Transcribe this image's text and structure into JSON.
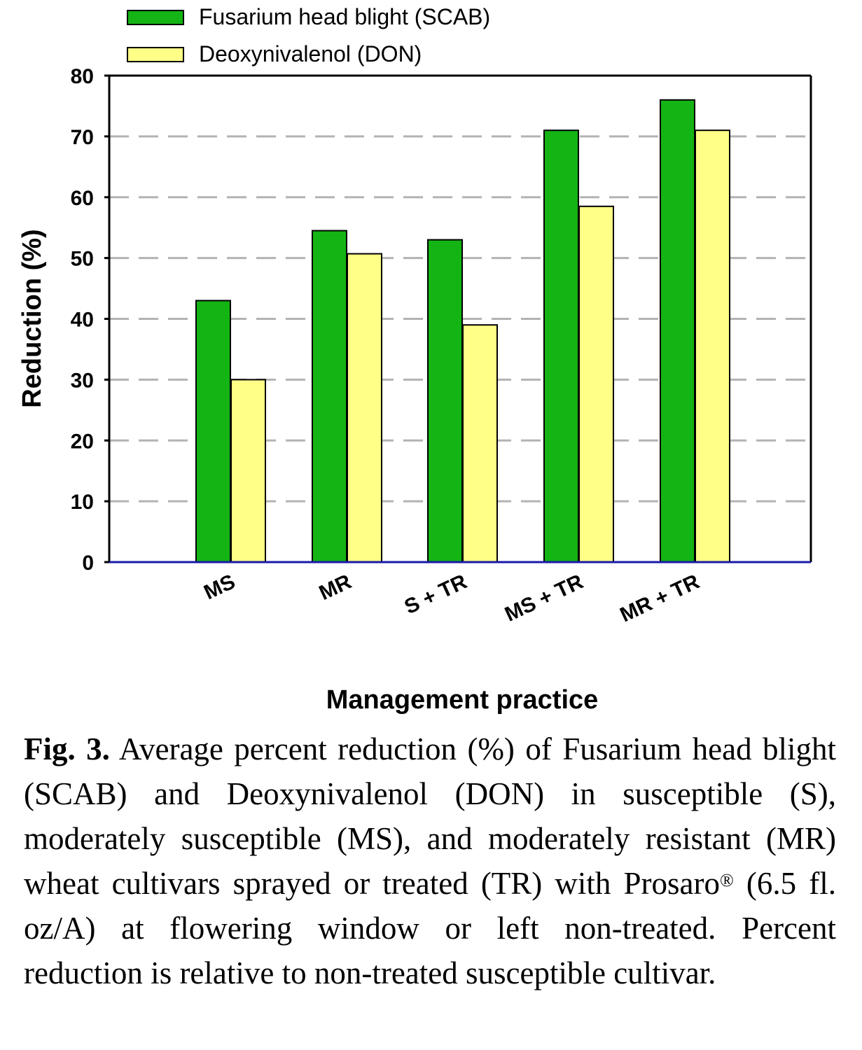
{
  "chart_data": {
    "type": "bar",
    "categories": [
      "MS",
      "MR",
      "S + TR",
      "MS + TR",
      "MR + TR"
    ],
    "series": [
      {
        "name": "Fusarium head blight (SCAB)",
        "color": "#14b414",
        "values": [
          43,
          54.5,
          53,
          71,
          76
        ]
      },
      {
        "name": "Deoxynivalenol (DON)",
        "color": "#ffff88",
        "values": [
          30,
          50.7,
          39,
          58.5,
          71
        ]
      }
    ],
    "ylabel": "Reduction (%)",
    "xlabel": "Management practice",
    "ylim": [
      0,
      80
    ],
    "yticks": [
      "0",
      "10",
      "20",
      "30",
      "40",
      "50",
      "60",
      "70",
      "80"
    ],
    "grid": "dashed horizontal",
    "legend_position": "top-left"
  },
  "caption": {
    "label": "Fig. 3.",
    "text_before_mark": " Average percent reduction (%) of Fusarium head blight (SCAB) and Deoxynivalenol (DON) in susceptible (S), moderately susceptible (MS), and moderately resistant (MR) wheat cultivars sprayed or treated (TR) with Prosaro",
    "mark": "®",
    "text_after_mark": " (6.5 fl. oz/A) at flowering window or left non-treated. Percent reduction is relative to non-treated susceptible cultivar."
  }
}
